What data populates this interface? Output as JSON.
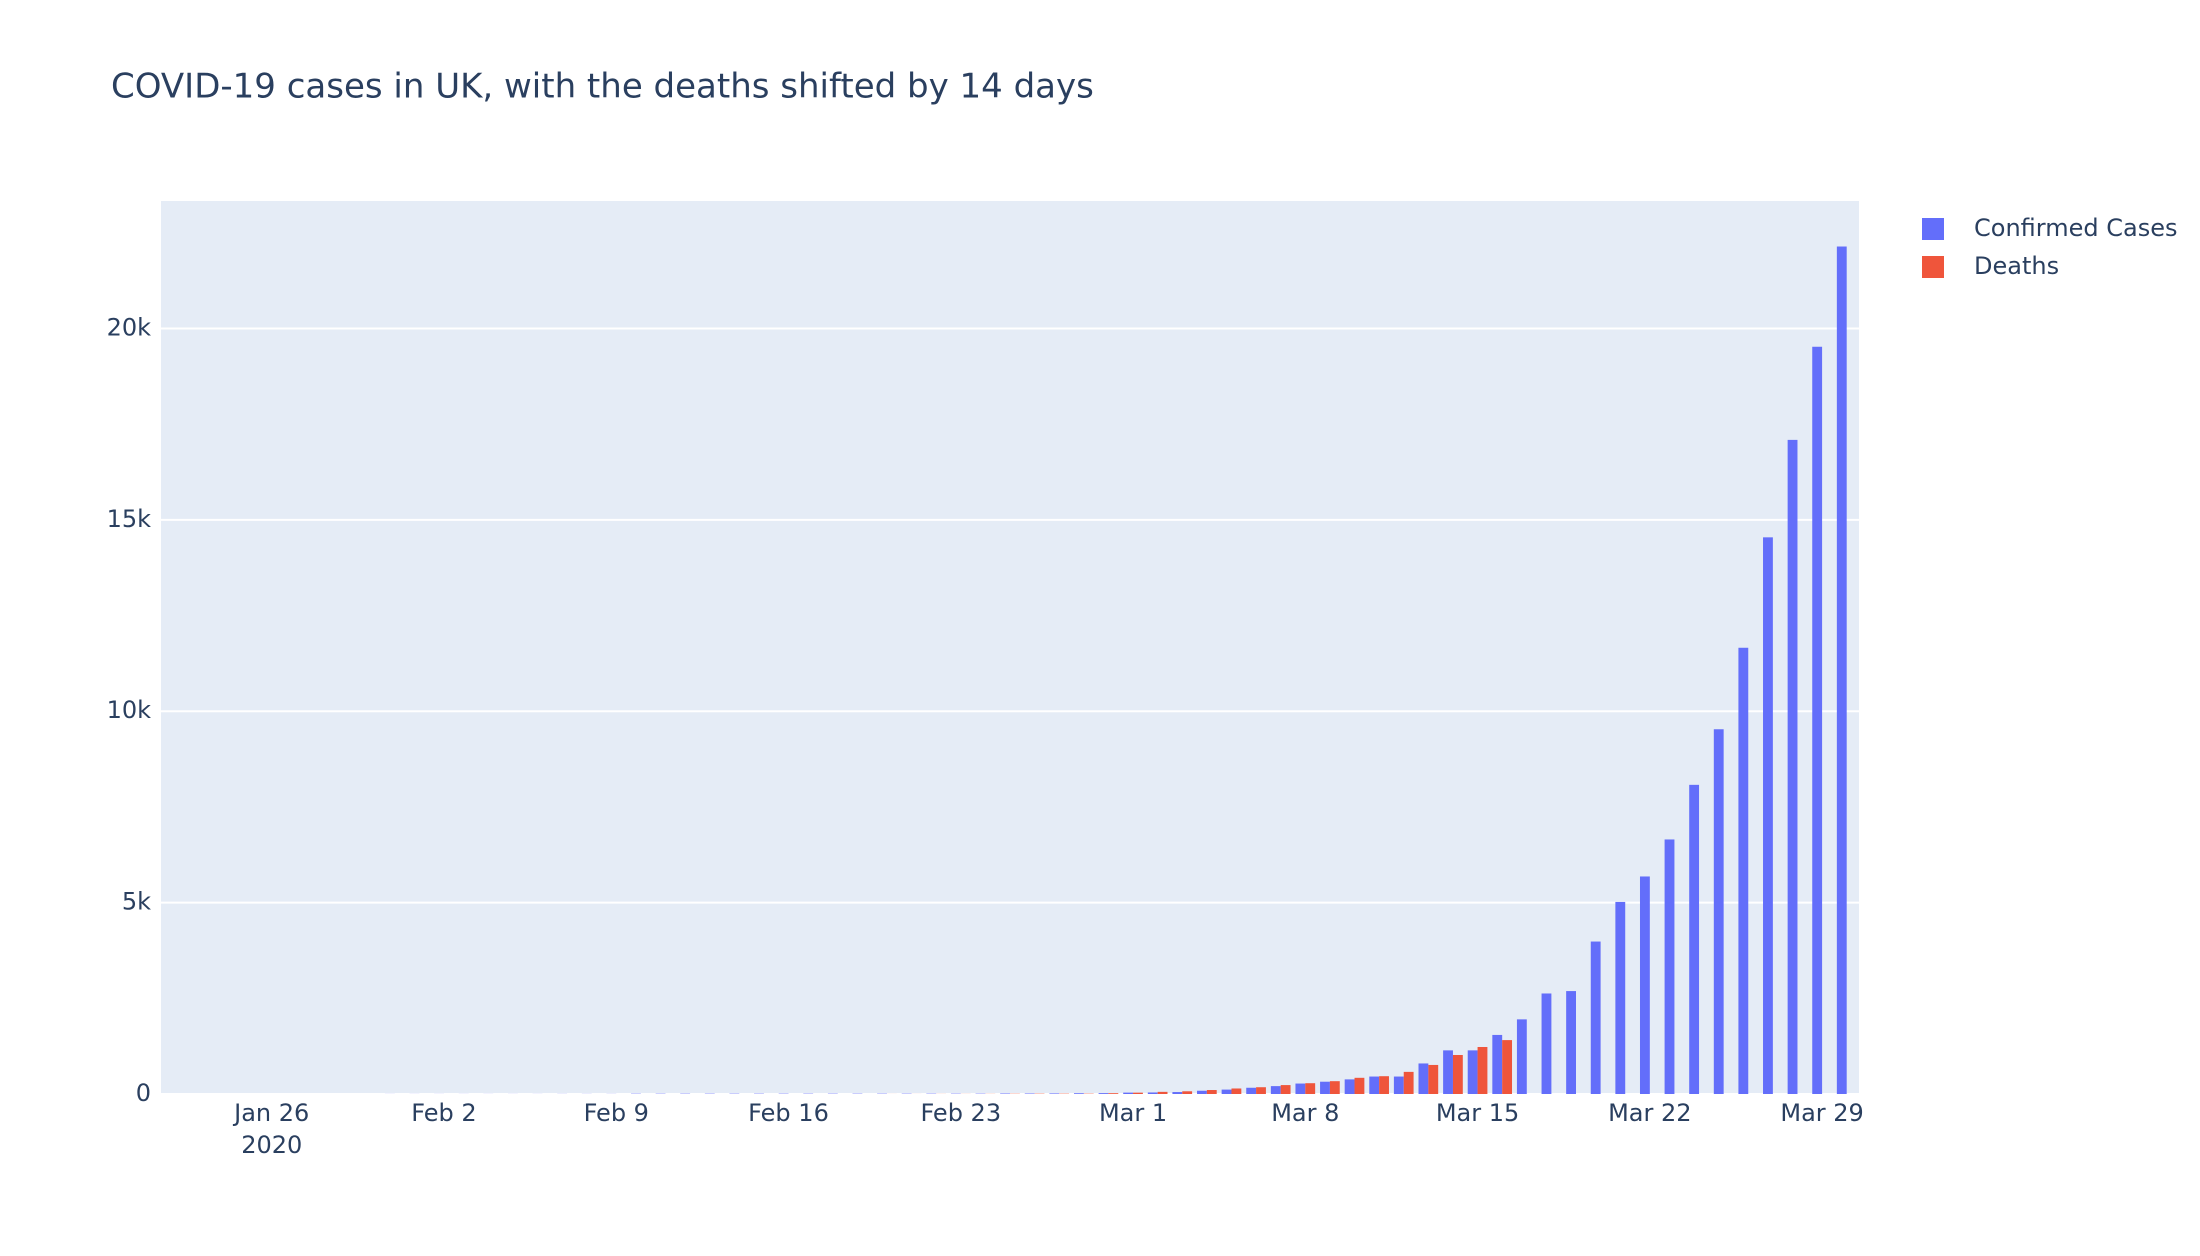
{
  "chart_data": {
    "type": "bar",
    "title": "COVID-19 cases in UK, with the deaths shifted by 14 days",
    "barmode": "group",
    "x": [
      "2020-01-22",
      "2020-01-23",
      "2020-01-24",
      "2020-01-25",
      "2020-01-26",
      "2020-01-27",
      "2020-01-28",
      "2020-01-29",
      "2020-01-30",
      "2020-01-31",
      "2020-02-01",
      "2020-02-02",
      "2020-02-03",
      "2020-02-04",
      "2020-02-05",
      "2020-02-06",
      "2020-02-07",
      "2020-02-08",
      "2020-02-09",
      "2020-02-10",
      "2020-02-11",
      "2020-02-12",
      "2020-02-13",
      "2020-02-14",
      "2020-02-15",
      "2020-02-16",
      "2020-02-17",
      "2020-02-18",
      "2020-02-19",
      "2020-02-20",
      "2020-02-21",
      "2020-02-22",
      "2020-02-23",
      "2020-02-24",
      "2020-02-25",
      "2020-02-26",
      "2020-02-27",
      "2020-02-28",
      "2020-02-29",
      "2020-03-01",
      "2020-03-02",
      "2020-03-03",
      "2020-03-04",
      "2020-03-05",
      "2020-03-06",
      "2020-03-07",
      "2020-03-08",
      "2020-03-09",
      "2020-03-10",
      "2020-03-11",
      "2020-03-12",
      "2020-03-13",
      "2020-03-14",
      "2020-03-15",
      "2020-03-16",
      "2020-03-17",
      "2020-03-18",
      "2020-03-19",
      "2020-03-20",
      "2020-03-21",
      "2020-03-22",
      "2020-03-23",
      "2020-03-24",
      "2020-03-25",
      "2020-03-26",
      "2020-03-27",
      "2020-03-28",
      "2020-03-29",
      "2020-03-30"
    ],
    "series": [
      {
        "name": "Confirmed Cases",
        "color": "#636efa",
        "values": [
          0,
          0,
          0,
          0,
          0,
          0,
          0,
          0,
          0,
          2,
          2,
          2,
          2,
          2,
          2,
          2,
          3,
          3,
          3,
          8,
          8,
          9,
          9,
          9,
          9,
          9,
          9,
          9,
          9,
          9,
          9,
          9,
          9,
          9,
          13,
          13,
          15,
          20,
          23,
          36,
          40,
          51,
          85,
          115,
          163,
          206,
          273,
          321,
          382,
          456,
          456,
          798,
          1140,
          1140,
          1543,
          1950,
          2626,
          2689,
          3983,
          5018,
          5683,
          6650,
          8077,
          9529,
          11658,
          14543,
          17089,
          19522,
          22141
        ]
      },
      {
        "name": "Deaths",
        "color": "#ef553b",
        "values": [
          0,
          0,
          0,
          0,
          0,
          0,
          0,
          0,
          0,
          0,
          0,
          0,
          0,
          0,
          0,
          0,
          0,
          0,
          0,
          0,
          0,
          0,
          0,
          0,
          0,
          0,
          0,
          0,
          0,
          1,
          1,
          2,
          2,
          3,
          6,
          8,
          8,
          8,
          21,
          35,
          56,
          71,
          104,
          144,
          177,
          233,
          282,
          335,
          423,
          465,
          578,
          759,
          1019,
          1228,
          1408,
          null,
          null,
          null,
          null,
          null,
          null,
          null,
          null,
          null,
          null,
          null,
          null,
          null,
          null
        ]
      }
    ],
    "xlim": [
      "2020-01-21 12:00",
      "2020-03-30 12:00"
    ],
    "xticks": [
      {
        "value": "2020-01-26",
        "label": "Jan 26"
      },
      {
        "value": "2020-02-02",
        "label": "Feb 2"
      },
      {
        "value": "2020-02-09",
        "label": "Feb 9"
      },
      {
        "value": "2020-02-16",
        "label": "Feb 16"
      },
      {
        "value": "2020-02-23",
        "label": "Feb 23"
      },
      {
        "value": "2020-03-01",
        "label": "Mar 1"
      },
      {
        "value": "2020-03-08",
        "label": "Mar 8"
      },
      {
        "value": "2020-03-15",
        "label": "Mar 15"
      },
      {
        "value": "2020-03-22",
        "label": "Mar 22"
      },
      {
        "value": "2020-03-29",
        "label": "Mar 29"
      }
    ],
    "x_year_label": "2020",
    "ylim": [
      0,
      23330
    ],
    "yticks": [
      0,
      {
        "value": 5000,
        "label": "5k"
      },
      {
        "value": 10000,
        "label": "10k"
      },
      {
        "value": 15000,
        "label": "15k"
      },
      {
        "value": 20000,
        "label": "20k"
      }
    ],
    "grid": true,
    "legend": "outside-right"
  }
}
